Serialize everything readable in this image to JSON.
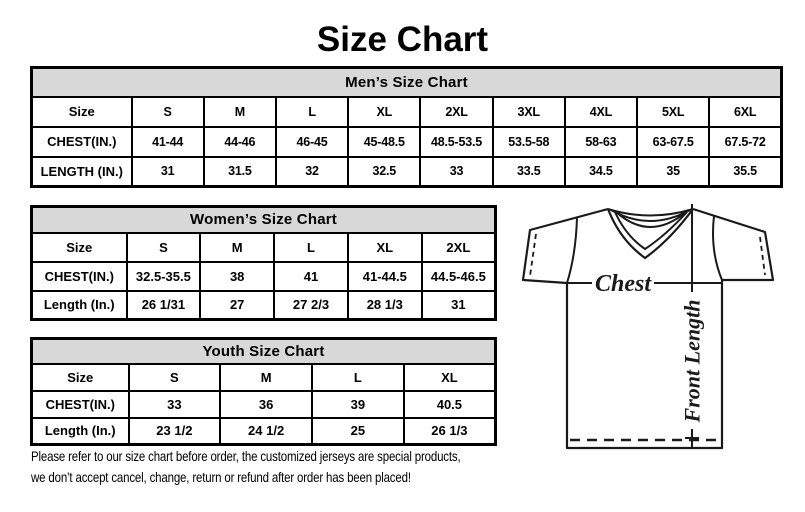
{
  "title": "Size Chart",
  "tables": {
    "men": {
      "title": "Men’s Size Chart",
      "rows": [
        [
          "Size",
          "S",
          "M",
          "L",
          "XL",
          "2XL",
          "3XL",
          "4XL",
          "5XL",
          "6XL"
        ],
        [
          "CHEST(IN.)",
          "41-44",
          "44-46",
          "46-45",
          "45-48.5",
          "48.5-53.5",
          "53.5-58",
          "58-63",
          "63-67.5",
          "67.5-72"
        ],
        [
          "LENGTH (IN.)",
          "31",
          "31.5",
          "32",
          "32.5",
          "33",
          "33.5",
          "34.5",
          "35",
          "35.5"
        ]
      ]
    },
    "women": {
      "title": "Women’s Size Chart",
      "rows": [
        [
          "Size",
          "S",
          "M",
          "L",
          "XL",
          "2XL"
        ],
        [
          "CHEST(IN.)",
          "32.5-35.5",
          "38",
          "41",
          "41-44.5",
          "44.5-46.5"
        ],
        [
          "Length (In.)",
          "26 1/31",
          "27",
          "27 2/3",
          "28 1/3",
          "31"
        ]
      ]
    },
    "youth": {
      "title": "Youth Size Chart",
      "rows": [
        [
          "Size",
          "S",
          "M",
          "L",
          "XL"
        ],
        [
          "CHEST(IN.)",
          "33",
          "36",
          "39",
          "40.5"
        ],
        [
          "Length (In.)",
          "23 1/2",
          "24 1/2",
          "25",
          "26 1/3"
        ]
      ]
    }
  },
  "shirt": {
    "chest_label": "Chest",
    "front_length_label": "Front Length"
  },
  "disclaimer": {
    "line1": "Please refer to our size chart before order, the customized jerseys are special products,",
    "line2": "we don’t accept cancel, change, return or refund after order has been placed!"
  },
  "colors": {
    "table_header_bg": "#d8d8d8",
    "border": "#000000",
    "text": "#000000",
    "background": "#ffffff"
  }
}
